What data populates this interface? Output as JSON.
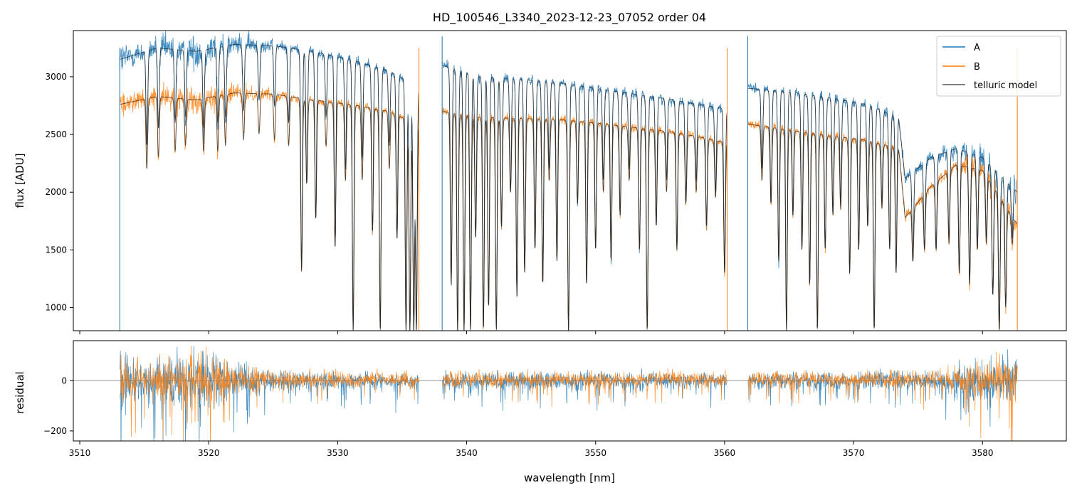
{
  "figure": {
    "title": "HD_100546_L3340_2023-12-23_07052  order 04"
  },
  "colors": {
    "A": "#1f77b4",
    "B": "#ff7f0e",
    "telluric_model": "#222222",
    "zero_line": "#777777"
  },
  "chart_data": [
    {
      "type": "line",
      "panel": "flux",
      "title": "HD_100546_L3340_2023-12-23_07052  order 04",
      "xlabel": "",
      "ylabel": "flux [ADU]",
      "xlim": [
        3509.5,
        3586.5
      ],
      "ylim": [
        800,
        3400
      ],
      "x_ticks": [
        3510,
        3520,
        3530,
        3540,
        3550,
        3560,
        3570,
        3580
      ],
      "x_tick_labels_shown": false,
      "y_ticks": [
        1000,
        1500,
        2000,
        2500,
        3000
      ],
      "y_tick_labels": [
        "1000",
        "1500",
        "2000",
        "2500",
        "3000"
      ],
      "legend": {
        "position": "top-right",
        "entries": [
          "A",
          "B",
          "telluric model"
        ]
      },
      "gaps": [
        [
          3536.3,
          3538.1
        ],
        [
          3560.2,
          3561.8
        ]
      ],
      "continuum": {
        "x": [
          3513.1,
          3516,
          3519,
          3522,
          3525,
          3528,
          3531,
          3534,
          3536.3,
          3538.1,
          3541,
          3544,
          3547,
          3550,
          3553,
          3556,
          3558,
          3560.2,
          3561.8,
          3565,
          3568,
          3571,
          3573.5,
          3574,
          3576,
          3578,
          3580,
          3582.7
        ],
        "A": [
          3150,
          3250,
          3220,
          3280,
          3270,
          3220,
          3150,
          3050,
          2900,
          3100,
          3000,
          2980,
          2950,
          2900,
          2850,
          2800,
          2760,
          2720,
          2900,
          2870,
          2820,
          2760,
          2650,
          2120,
          2300,
          2380,
          2300,
          2000
        ],
        "B": [
          2760,
          2830,
          2800,
          2860,
          2850,
          2800,
          2760,
          2700,
          2580,
          2700,
          2650,
          2640,
          2630,
          2600,
          2560,
          2520,
          2480,
          2430,
          2590,
          2540,
          2490,
          2450,
          2380,
          1780,
          2050,
          2240,
          2190,
          1720
        ]
      },
      "absorption_lines": {
        "centers": [
          3515.2,
          3516.1,
          3517.4,
          3518.2,
          3519.6,
          3520.7,
          3521.3,
          3522.7,
          3523.9,
          3525.1,
          3526.2,
          3527.2,
          3527.6,
          3528.3,
          3529.1,
          3529.8,
          3530.6,
          3531.2,
          3531.9,
          3532.7,
          3533.3,
          3534.0,
          3534.6,
          3535.3,
          3535.6,
          3535.9,
          3536.1,
          3538.8,
          3539.3,
          3539.8,
          3540.3,
          3540.7,
          3541.3,
          3541.7,
          3542.3,
          3542.7,
          3543.4,
          3543.9,
          3544.5,
          3545.3,
          3545.9,
          3546.4,
          3547.0,
          3547.9,
          3548.6,
          3549.3,
          3550.0,
          3550.6,
          3551.2,
          3551.9,
          3552.6,
          3553.4,
          3554.0,
          3554.7,
          3555.5,
          3556.3,
          3557.0,
          3557.8,
          3558.6,
          3559.3,
          3560.0,
          3562.9,
          3563.6,
          3564.2,
          3564.8,
          3565.3,
          3566.0,
          3566.6,
          3567.2,
          3567.8,
          3568.4,
          3569.0,
          3569.7,
          3570.4,
          3571.1,
          3571.6,
          3572.2,
          3572.8,
          3573.3,
          3574.6,
          3575.5,
          3576.4,
          3577.4,
          3578.2,
          3579.0,
          3579.6,
          3580.3,
          3580.8,
          3581.3,
          3581.8,
          3582.3
        ],
        "minima_A": [
          2400,
          2550,
          2600,
          2650,
          2550,
          2600,
          2650,
          2700,
          2800,
          2750,
          2600,
          1330,
          2070,
          1760,
          2650,
          1530,
          2200,
          800,
          2300,
          1650,
          800,
          2400,
          1600,
          800,
          800,
          800,
          800,
          1200,
          800,
          800,
          800,
          1600,
          800,
          1000,
          800,
          1700,
          2000,
          1100,
          1300,
          1500,
          1200,
          2200,
          1400,
          800,
          1900,
          1200,
          1500,
          2100,
          1400,
          1800,
          2200,
          1500,
          800,
          1700,
          2100,
          1500,
          1900,
          2100,
          1700,
          2000,
          1300,
          2200,
          1900,
          1400,
          800,
          1800,
          1500,
          1200,
          800,
          1500,
          1800,
          1900,
          1300,
          1500,
          1700,
          800,
          1900,
          1500,
          1300,
          1400,
          1500,
          1500,
          1600,
          1300,
          1200,
          1500,
          1600,
          1100,
          800,
          1000,
          1600
        ],
        "minima_B": [
          2200,
          2300,
          2350,
          2400,
          2350,
          2350,
          2400,
          2450,
          2500,
          2450,
          2400,
          1310,
          2070,
          1760,
          2400,
          1530,
          2100,
          800,
          2100,
          1650,
          800,
          2200,
          1600,
          800,
          800,
          800,
          800,
          1200,
          800,
          800,
          800,
          1600,
          800,
          1000,
          800,
          1700,
          2000,
          1100,
          1300,
          1500,
          1200,
          2100,
          1400,
          800,
          1900,
          1200,
          1500,
          2000,
          1400,
          1800,
          2100,
          1500,
          800,
          1700,
          2000,
          1500,
          1900,
          2000,
          1700,
          1950,
          1300,
          2100,
          1900,
          1400,
          800,
          1800,
          1500,
          1200,
          800,
          1500,
          1800,
          1850,
          1300,
          1500,
          1700,
          800,
          1850,
          1500,
          1300,
          1400,
          1500,
          1500,
          1550,
          1300,
          1200,
          1500,
          1550,
          1100,
          800,
          1000,
          1550
        ]
      },
      "series": [
        {
          "name": "A"
        },
        {
          "name": "B"
        },
        {
          "name": "telluric model"
        }
      ]
    },
    {
      "type": "line",
      "panel": "residual",
      "xlabel": "wavelength [nm]",
      "ylabel": "residual",
      "xlim": [
        3509.5,
        3586.5
      ],
      "ylim": [
        -240,
        160
      ],
      "x_ticks": [
        3510,
        3520,
        3530,
        3540,
        3550,
        3560,
        3570,
        3580
      ],
      "x_tick_labels": [
        "3510",
        "3520",
        "3530",
        "3540",
        "3550",
        "3560",
        "3570",
        "3580"
      ],
      "y_ticks": [
        -200,
        0
      ],
      "y_tick_labels": [
        "−200",
        "0"
      ],
      "zero_line": 0,
      "segments": [
        [
          3513.1,
          3536.3
        ],
        [
          3538.1,
          3560.2
        ],
        [
          3561.8,
          3582.7
        ]
      ],
      "noise_profile": {
        "x": [
          3513.1,
          3514,
          3515,
          3517,
          3520,
          3522,
          3525,
          3530,
          3536,
          3538.1,
          3545,
          3550,
          3555,
          3560,
          3562,
          3570,
          3576,
          3578,
          3580,
          3582.7
        ],
        "amplitude": [
          180,
          140,
          110,
          150,
          180,
          120,
          70,
          55,
          50,
          55,
          60,
          55,
          55,
          50,
          55,
          55,
          65,
          90,
          150,
          160
        ]
      },
      "series": [
        {
          "name": "A"
        },
        {
          "name": "B"
        }
      ]
    }
  ]
}
